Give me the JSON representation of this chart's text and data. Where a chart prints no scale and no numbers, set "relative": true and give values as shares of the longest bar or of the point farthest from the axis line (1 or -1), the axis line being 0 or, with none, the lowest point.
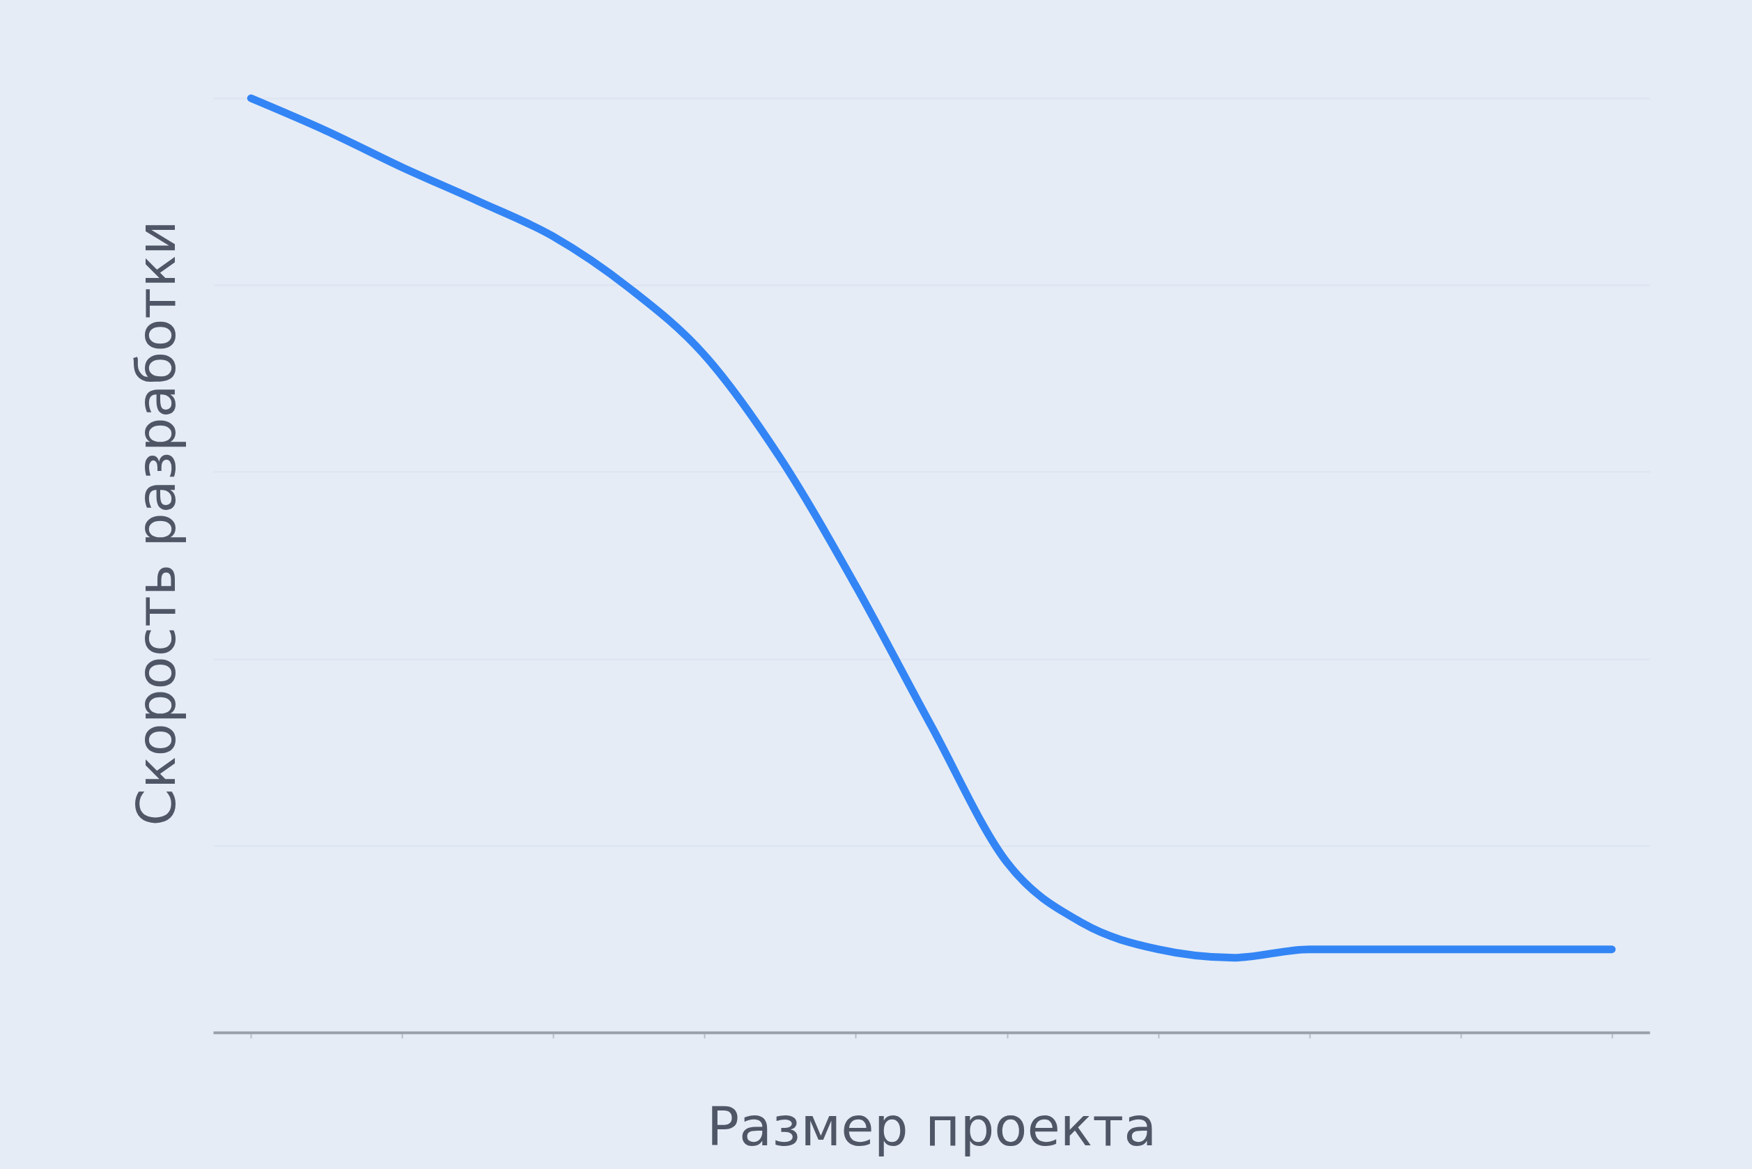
{
  "chart_data": {
    "type": "line",
    "relative": true,
    "xlabel": "Размер проекта",
    "ylabel": "Скорость разработки",
    "categories": [
      null,
      null,
      null,
      null,
      null,
      null,
      null,
      null,
      null,
      null,
      null,
      null,
      null,
      null,
      null,
      null,
      null,
      null,
      null
    ],
    "series": [
      {
        "color": "#3385f5",
        "values": [
          1,
          0.965,
          0.926,
          0.89,
          0.852,
          0.797,
          0.725,
          0.615,
          0.478,
          0.328,
          0.182,
          0.117,
          0.089,
          0.08,
          0.089,
          0.089,
          0.089,
          0.089,
          0.089
        ]
      }
    ],
    "grid": "y",
    "marker": "none",
    "line_style": "solid",
    "legend": false
  }
}
